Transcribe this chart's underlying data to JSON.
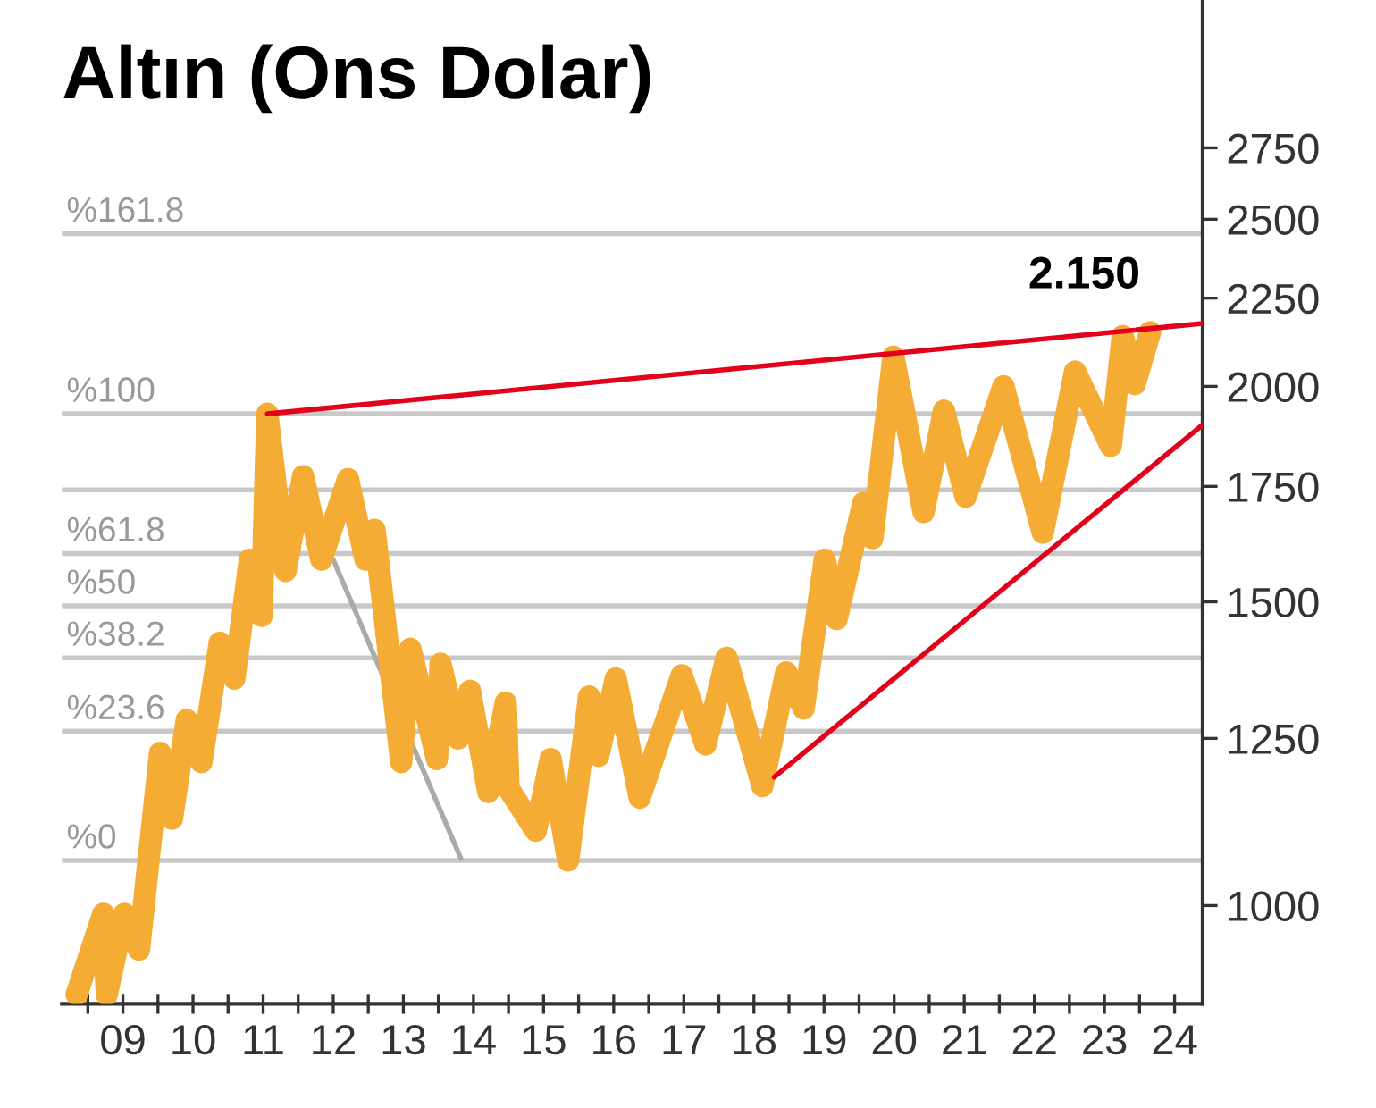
{
  "chart_data": {
    "type": "line",
    "title": "Altın (Ons Dolar)",
    "log": "y",
    "grid": false,
    "legend": false,
    "marker": "none",
    "line_style": "solid",
    "xlim": [
      8.13,
      24.4
    ],
    "ylim": [
      877,
      3350
    ],
    "yticks": [
      1000,
      1250,
      1500,
      1750,
      2000,
      2250,
      2500,
      2750
    ],
    "xticks": [
      {
        "value": 8.5,
        "label": null
      },
      {
        "value": 9,
        "label": "09"
      },
      {
        "value": 9.5,
        "label": null
      },
      10,
      {
        "value": 10.5,
        "label": null
      },
      11,
      {
        "value": 11.5,
        "label": null
      },
      12,
      {
        "value": 12.5,
        "label": null
      },
      13,
      {
        "value": 13.5,
        "label": null
      },
      14,
      {
        "value": 14.5,
        "label": null
      },
      15,
      {
        "value": 15.5,
        "label": null
      },
      16,
      {
        "value": 16.5,
        "label": null
      },
      17,
      {
        "value": 17.5,
        "label": null
      },
      18,
      {
        "value": 18.5,
        "label": null
      },
      19,
      {
        "value": 19.5,
        "label": null
      },
      20,
      {
        "value": 20.5,
        "label": null
      },
      21,
      {
        "value": 21.5,
        "label": null
      },
      22,
      {
        "value": 22.5,
        "label": null
      },
      23,
      {
        "value": 23.5,
        "label": null
      },
      24
    ],
    "ref_lines": [
      {
        "axis": "y",
        "value": 2452,
        "color": "#c8c8c8"
      },
      {
        "axis": "y",
        "value": 1928,
        "color": "#c8c8c8"
      },
      {
        "axis": "y",
        "value": 1742,
        "label": null,
        "color": "#c8c8c8"
      },
      {
        "axis": "y",
        "value": 1600,
        "color": "#c8c8c8"
      },
      {
        "axis": "y",
        "value": 1492,
        "color": "#c8c8c8"
      },
      {
        "axis": "y",
        "value": 1392,
        "color": "#c8c8c8"
      },
      {
        "axis": "y",
        "value": 1262,
        "color": "#c8c8c8"
      },
      {
        "axis": "y",
        "value": 1062,
        "color": "#c8c8c8"
      }
    ],
    "series": [
      {
        "color": "#aaaaaa",
        "x": [
          12.0,
          13.82
        ],
        "values": [
          1587,
          1065
        ]
      },
      {
        "color": "#f5ac35",
        "x": [
          8.34,
          8.72,
          8.77,
          9.02,
          9.23,
          9.53,
          9.7,
          9.91,
          10.12,
          10.38,
          10.59,
          10.81,
          10.98,
          11.06,
          11.32,
          11.57,
          11.83,
          12.21,
          12.46,
          12.59,
          12.97,
          13.1,
          13.48,
          13.53,
          13.78,
          13.95,
          14.21,
          14.46,
          14.5,
          14.89,
          15.1,
          15.35,
          15.65,
          15.78,
          16.03,
          16.37,
          16.97,
          17.31,
          17.61,
          18.12,
          18.46,
          18.71,
          19.01,
          19.18,
          19.56,
          19.69,
          19.99,
          20.42,
          20.71,
          21.02,
          21.56,
          22.12,
          22.58,
          23.09,
          23.26,
          23.43,
          23.65
        ],
        "values": [
          888,
          989,
          888,
          989,
          943,
          1226,
          1123,
          1281,
          1211,
          1420,
          1354,
          1587,
          1472,
          1928,
          1563,
          1774,
          1587,
          1767,
          1587,
          1651,
          1211,
          1409,
          1216,
          1381,
          1250,
          1332,
          1164,
          1311,
          1169,
          1105,
          1216,
          1062,
          1322,
          1221,
          1354,
          1155,
          1360,
          1240,
          1392,
          1173,
          1365,
          1301,
          1587,
          1466,
          1712,
          1633,
          2081,
          1691,
          1936,
          1726,
          2000,
          1645,
          2040,
          1847,
          2139,
          2006,
          2150
        ]
      },
      {
        "color": "#e3001b",
        "x": [
          11.06,
          24.4
        ],
        "values": [
          1928,
          2175
        ]
      },
      {
        "color": "#e3001b",
        "x": [
          18.29,
          24.4
        ],
        "values": [
          1187,
          1900
        ]
      }
    ],
    "annotations": [
      "2.150",
      "%161.8",
      "%100",
      "%61.8",
      "%50",
      "%38.2",
      "%23.6",
      "%0"
    ]
  }
}
